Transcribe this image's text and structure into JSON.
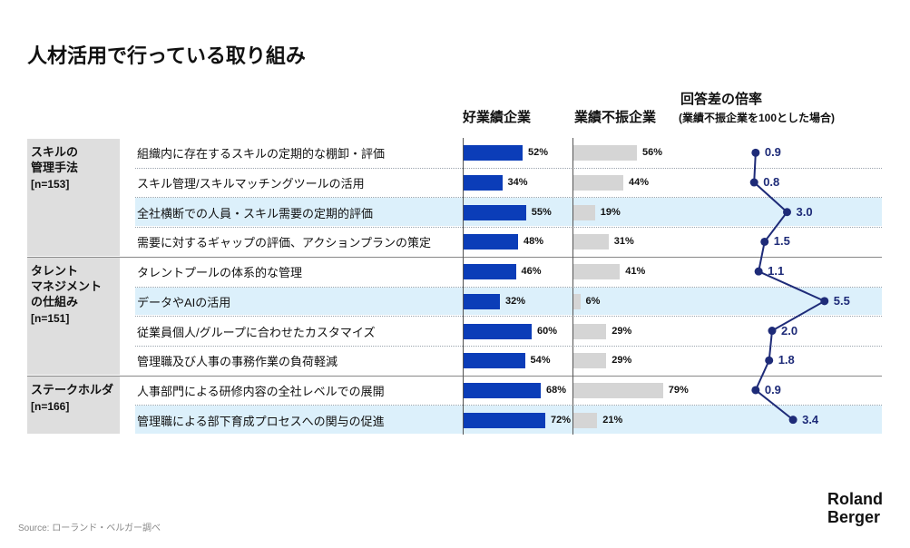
{
  "title": "人材活用で行っている取り組み",
  "headers": {
    "good": "好業績企業",
    "bad": "業績不振企業",
    "ratio": "回答差の倍率",
    "ratio_sub": "(業績不振企業を100とした場合)"
  },
  "groups": [
    {
      "label": "スキルの\n管理手法",
      "n": "[n=153]",
      "rows": [
        0,
        1,
        2,
        3
      ]
    },
    {
      "label": "タレント\nマネジメント\nの仕組み",
      "n": "[n=151]",
      "rows": [
        4,
        5,
        6,
        7
      ]
    },
    {
      "label": "ステークホルダ",
      "n": "[n=166]",
      "rows": [
        8,
        9
      ]
    }
  ],
  "chart_data": {
    "type": "bar",
    "categories": [
      "組織内に存在するスキルの定期的な棚卸・評価",
      "スキル管理/スキルマッチングツールの活用",
      "全社横断での人員・スキル需要の定期的評価",
      "需要に対するギャップの評価、アクションプランの策定",
      "タレントプールの体系的な管理",
      "データやAIの活用",
      "従業員個人/グループに合わせたカスタマイズ",
      "管理職及び人事の事務作業の負荷軽減",
      "人事部門による研修内容の全社レベルでの展開",
      "管理職による部下育成プロセスへの関与の促進"
    ],
    "series": [
      {
        "name": "好業績企業",
        "values": [
          52,
          34,
          55,
          48,
          46,
          32,
          60,
          54,
          68,
          72
        ],
        "labels": [
          "52%",
          "34%",
          "55%",
          "48%",
          "46%",
          "32%",
          "60%",
          "54%",
          "68%",
          "72%"
        ],
        "color": "#0b3db8"
      },
      {
        "name": "業績不振企業",
        "values": [
          56,
          44,
          19,
          31,
          41,
          6,
          29,
          29,
          79,
          21
        ],
        "labels": [
          "56%",
          "44%",
          "19%",
          "31%",
          "41%",
          "6%",
          "29%",
          "29%",
          "79%",
          "21%"
        ],
        "color": "#d5d5d5"
      },
      {
        "name": "回答差の倍率",
        "values": [
          0.9,
          0.8,
          3.0,
          1.5,
          1.1,
          5.5,
          2.0,
          1.8,
          0.9,
          3.4
        ],
        "labels": [
          "0.9",
          "0.8",
          "3.0",
          "1.5",
          "1.1",
          "5.5",
          "2.0",
          "1.8",
          "0.9",
          "3.4"
        ],
        "color": "#1e2b78"
      }
    ],
    "highlighted_rows": [
      2,
      5,
      9
    ]
  },
  "source": "Source: ローランド・ベルガー調べ",
  "logo": "Roland\nBerger"
}
